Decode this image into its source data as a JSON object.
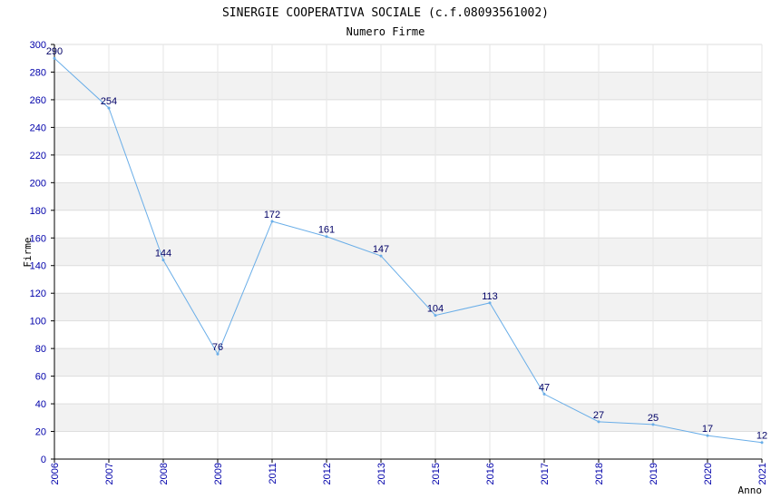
{
  "chart_data": {
    "type": "line",
    "title": "SINERGIE COOPERATIVA SOCIALE (c.f.08093561002)",
    "subtitle": "Numero Firme",
    "xlabel": "Anno",
    "ylabel": "Firme",
    "categories": [
      "2006",
      "2007",
      "2008",
      "2009",
      "2011",
      "2012",
      "2013",
      "2015",
      "2016",
      "2017",
      "2018",
      "2019",
      "2020",
      "2021"
    ],
    "series": [
      {
        "values": [
          290,
          254,
          144,
          76,
          172,
          161,
          147,
          104,
          113,
          47,
          27,
          25,
          17,
          12
        ]
      }
    ],
    "ylim": [
      0,
      300
    ],
    "yticks": [
      0,
      20,
      40,
      60,
      80,
      100,
      120,
      140,
      160,
      180,
      200,
      220,
      240,
      260,
      280,
      300
    ],
    "grid": true,
    "line_color": "#6aaee8",
    "band_color": "#f2f2f2"
  }
}
